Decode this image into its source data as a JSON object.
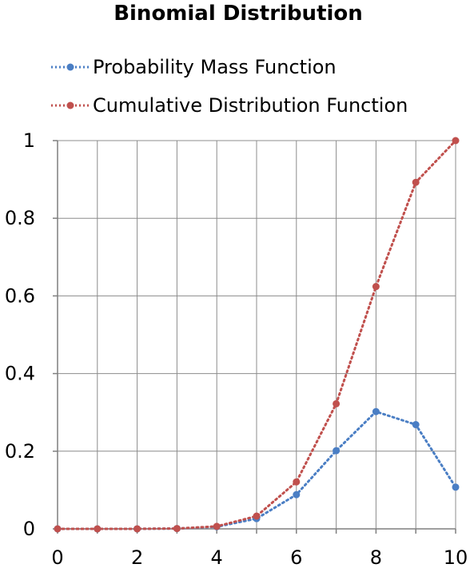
{
  "chart_data": {
    "type": "line",
    "title": "Binomial Distribution",
    "xlabel": "",
    "ylabel": "",
    "x": [
      0,
      1,
      2,
      3,
      4,
      5,
      6,
      7,
      8,
      9,
      10
    ],
    "xlim": [
      0,
      10
    ],
    "ylim": [
      0,
      1
    ],
    "xticks": [
      "0",
      "2",
      "4",
      "6",
      "8",
      "10"
    ],
    "yticks": [
      "0",
      "0.2",
      "0.4",
      "0.6",
      "0.8",
      "1"
    ],
    "grid": true,
    "legend_position": "top-left",
    "series": [
      {
        "name": "Probability Mass Function",
        "color": "#4A7EC4",
        "values": [
          0,
          0,
          0.0001,
          0.0008,
          0.0055,
          0.0264,
          0.0881,
          0.2013,
          0.302,
          0.2684,
          0.1074
        ]
      },
      {
        "name": "Cumulative Distribution Function",
        "color": "#C0504D",
        "values": [
          0,
          0,
          0.0001,
          0.0009,
          0.0064,
          0.0328,
          0.1209,
          0.3222,
          0.6242,
          0.8926,
          1.0
        ]
      }
    ]
  }
}
